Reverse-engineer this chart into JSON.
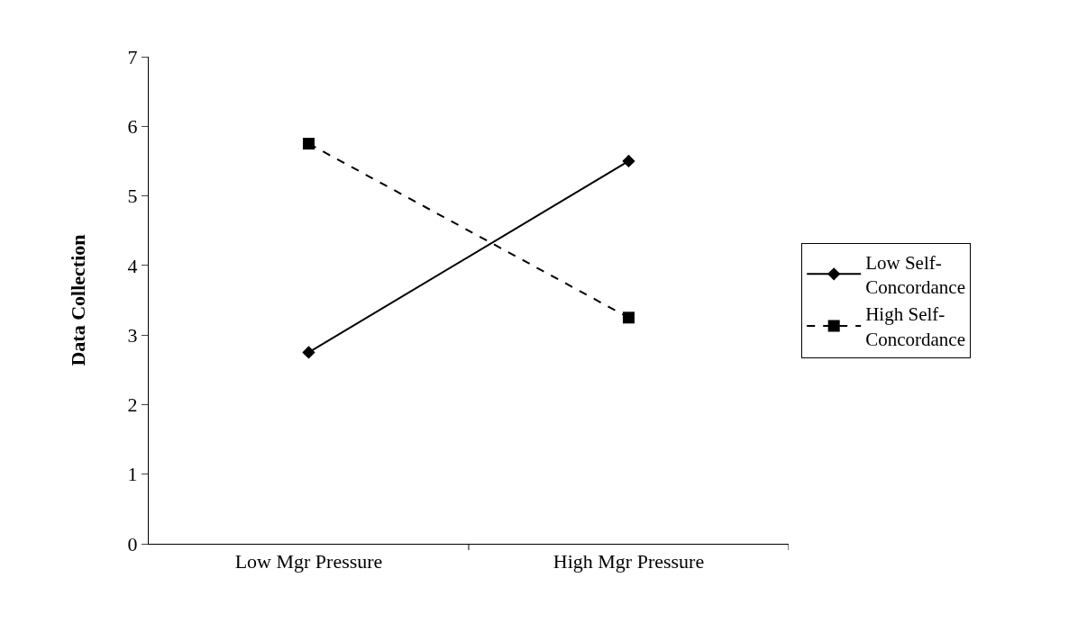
{
  "chart_data": {
    "type": "line",
    "ylabel": "Data Collection",
    "categories": [
      "Low Mgr Pressure",
      "High Mgr Pressure"
    ],
    "series": [
      {
        "name": "Low Self-Concordance",
        "color": "#000000",
        "values": [
          2.75,
          5.5
        ],
        "marker": "diamond",
        "line_style": "solid"
      },
      {
        "name": "High Self-Concordance",
        "color": "#000000",
        "values": [
          5.75,
          3.25
        ],
        "marker": "square",
        "line_style": "dashed"
      }
    ],
    "ylim": [
      0,
      7
    ],
    "yticks": [
      0,
      1,
      2,
      3,
      4,
      5,
      6,
      7
    ],
    "legend": "right"
  }
}
